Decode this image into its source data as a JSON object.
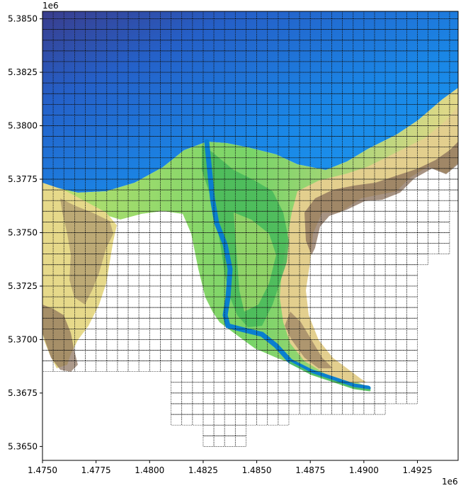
{
  "chart_data": {
    "type": "map",
    "title": "",
    "xlabel": "",
    "ylabel": "",
    "x_offset_label": "1e6",
    "y_offset_label": "1e6",
    "xlim": [
      1.475,
      1.4944
    ],
    "ylim": [
      5.36435,
      5.38535
    ],
    "x_ticks": [
      "1.4750",
      "1.4775",
      "1.4800",
      "1.4825",
      "1.4850",
      "1.4875",
      "1.4900",
      "1.4925"
    ],
    "x_tick_values": [
      1.475,
      1.4775,
      1.48,
      1.4825,
      1.485,
      1.4875,
      1.49,
      1.4925
    ],
    "y_ticks": [
      "5.3850",
      "5.3825",
      "5.3800",
      "5.3775",
      "5.3750",
      "5.3725",
      "5.3700",
      "5.3675",
      "5.3650"
    ],
    "y_tick_values": [
      5.385,
      5.3825,
      5.38,
      5.3775,
      5.375,
      5.3725,
      5.37,
      5.3675,
      5.365
    ],
    "grid": "dotted tile grid overlay",
    "grid_cell_size": 0.0005,
    "colors": {
      "deep_water": "#3a3d8c",
      "water": "#1e78e0",
      "shallow_water": "#1a96ec",
      "river_channel": "#0a7fd0",
      "low_land": "#5cc860",
      "mid_land": "#d8e880",
      "sand": "#e6d98a",
      "high_land": "#8a6f5a",
      "tile_line": "#111111"
    }
  }
}
